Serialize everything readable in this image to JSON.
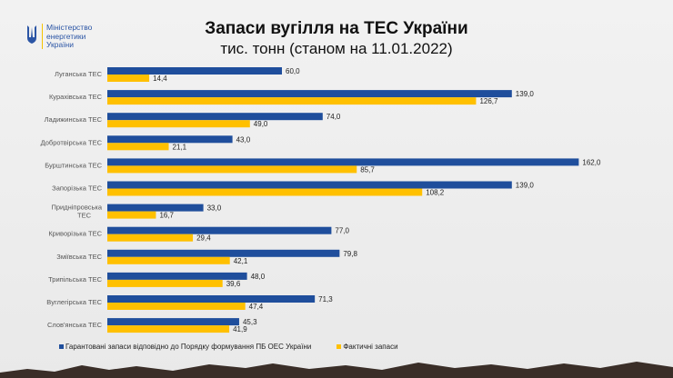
{
  "logo": {
    "text_lines": [
      "Міністерство",
      "енергетики",
      "України"
    ]
  },
  "chart_data": {
    "type": "bar",
    "orientation": "horizontal",
    "title": "Запаси вугілля на ТЕС України",
    "subtitle": "тис. тонн (станом на 11.01.2022)",
    "categories": [
      "Луганська ТЕС",
      "Курахівська ТЕС",
      "Ладижинська ТЕС",
      "Добротвірська ТЕС",
      "Бурштинська ТЕС",
      "Запорізька ТЕС",
      "Придніпровська ТЕС",
      "Криворізька ТЕС",
      "Зміївська ТЕС",
      "Трипільська ТЕС",
      "Вуглегірська ТЕС",
      "Слов'янська ТЕС"
    ],
    "series": [
      {
        "name": "Гарантовані запаси відповідно до Порядку формування ПБ ОЕС України",
        "color": "#1f4e9c",
        "values": [
          60.0,
          139.0,
          74.0,
          43.0,
          162.0,
          139.0,
          33.0,
          77.0,
          79.8,
          48.0,
          71.3,
          45.3
        ]
      },
      {
        "name": "Фактичні запаси",
        "color": "#ffc000",
        "values": [
          14.4,
          126.7,
          49.0,
          21.1,
          85.7,
          108.2,
          16.7,
          29.4,
          42.1,
          39.6,
          47.4,
          41.9
        ]
      }
    ],
    "legend_position": "bottom",
    "grid": false
  }
}
